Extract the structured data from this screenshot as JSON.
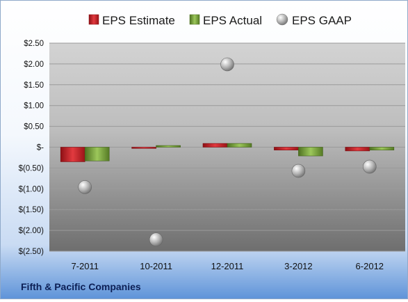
{
  "company_label": "Fifth & Pacific Companies",
  "colors": {
    "estimate": "#d2262c",
    "actual": "#7aa43c",
    "gaap": "#a8a8a8"
  },
  "chart_data": {
    "type": "bar",
    "categories": [
      "7-2011",
      "10-2011",
      "12-2011",
      "3-2012",
      "6-2012"
    ],
    "series": [
      {
        "name": "EPS Estimate",
        "kind": "bar",
        "values": [
          -0.35,
          -0.03,
          0.09,
          -0.07,
          -0.09
        ]
      },
      {
        "name": "EPS Actual",
        "kind": "bar",
        "values": [
          -0.33,
          0.04,
          0.09,
          -0.21,
          -0.07
        ]
      },
      {
        "name": "EPS GAAP",
        "kind": "scatter",
        "values": [
          -0.96,
          -2.22,
          1.99,
          -0.57,
          -0.47
        ]
      }
    ],
    "ylim": [
      -2.5,
      2.5
    ],
    "yticks": [
      2.5,
      2.0,
      1.5,
      1.0,
      0.5,
      0,
      -0.5,
      -1.0,
      -1.5,
      -2.0,
      -2.5
    ],
    "ytick_labels": [
      "$2.50",
      "$2.00",
      "$1.50",
      "$1.00",
      "$0.50",
      "$-",
      "$(0.50)",
      "$(1.00)",
      "$(1.50)",
      "$(2.00)",
      "$(2.50)"
    ],
    "legend_position": "top",
    "grid": true
  }
}
